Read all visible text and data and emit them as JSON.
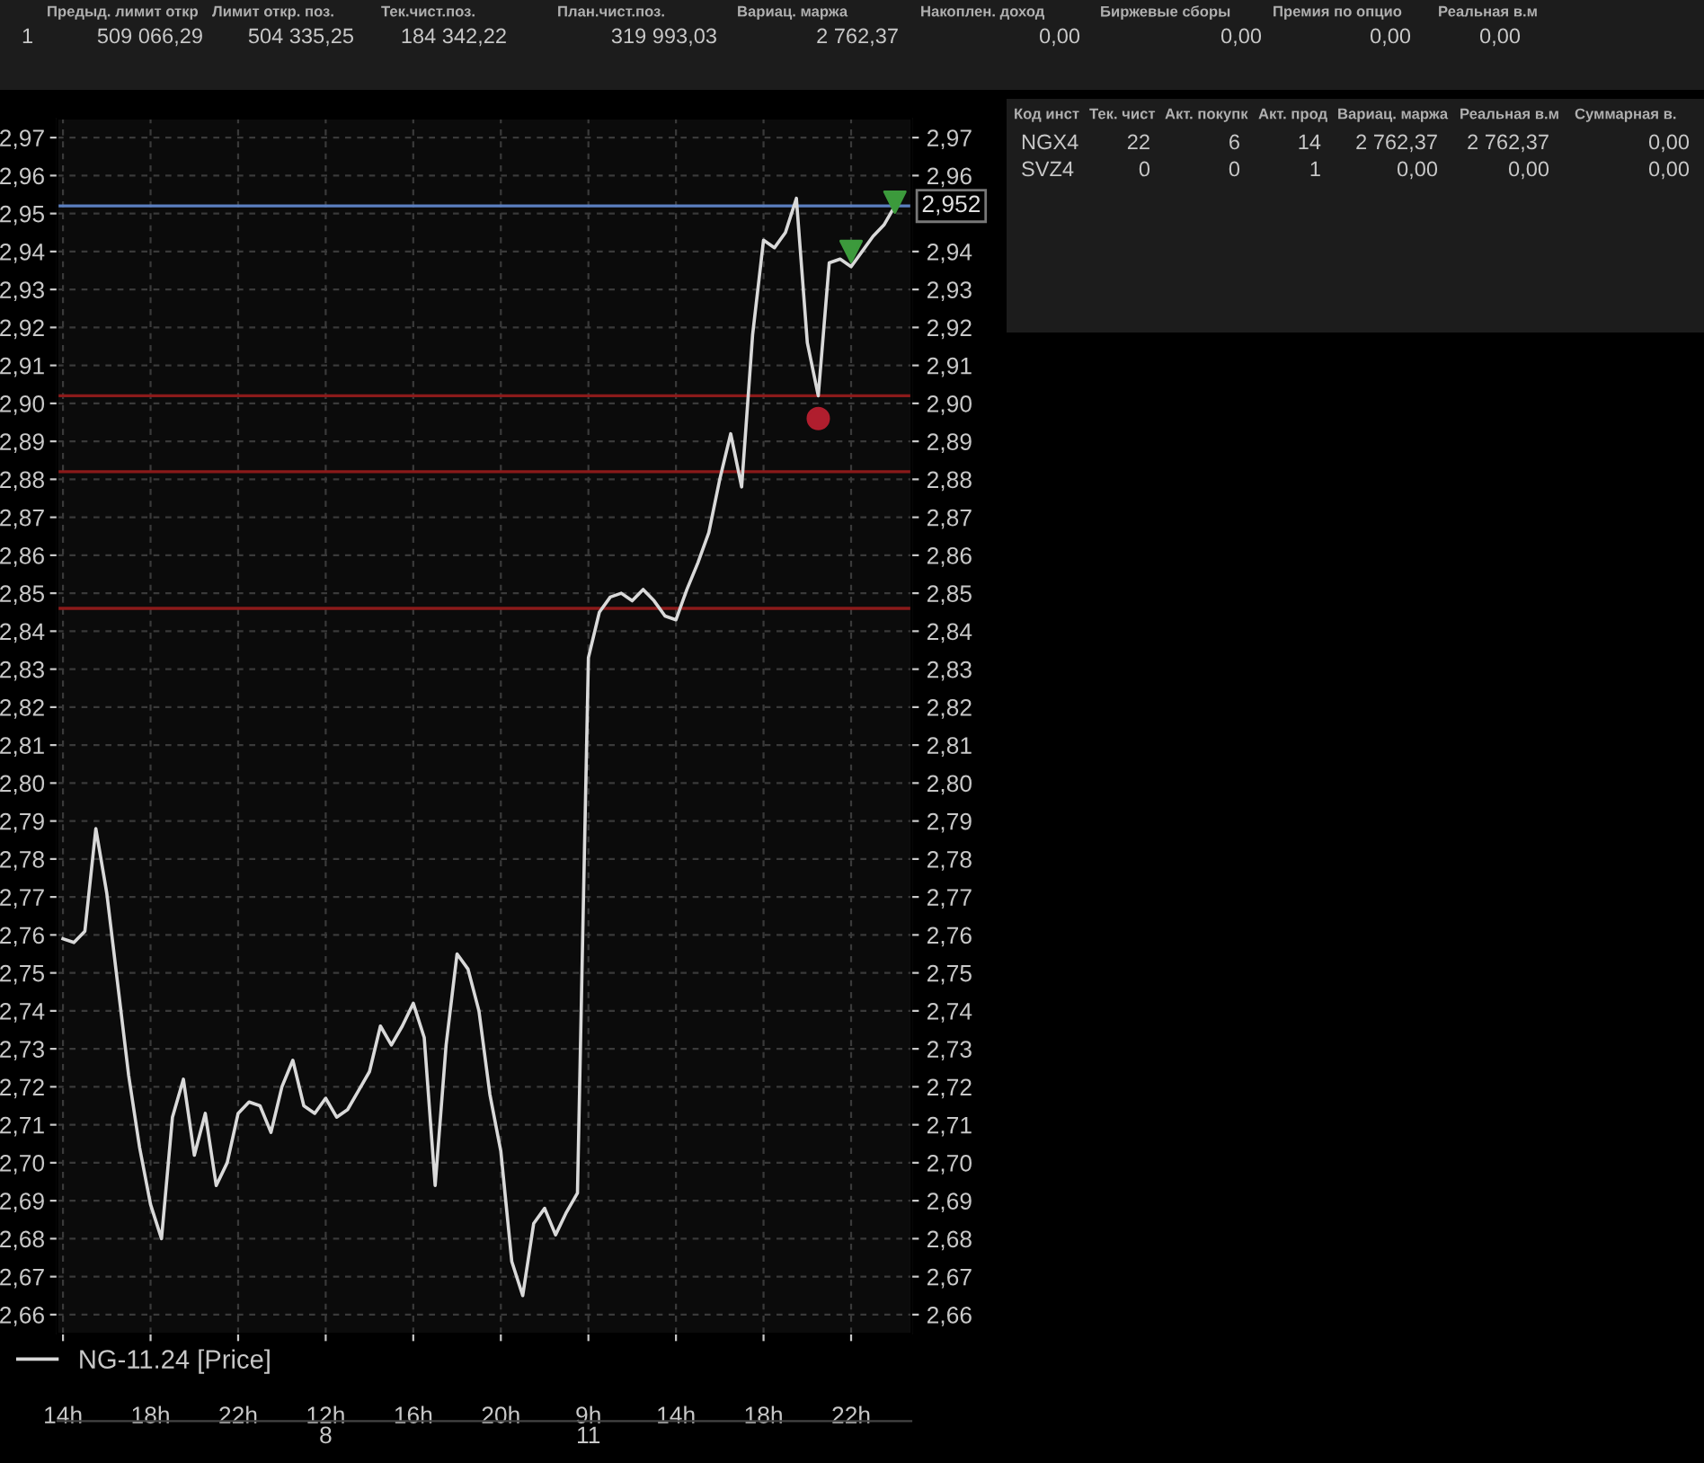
{
  "chart_data": [
    {
      "type": "line",
      "line_style": "solid",
      "marker": "none",
      "grid": true,
      "legend": "bottom",
      "categories": [
        "14h",
        null,
        null,
        null,
        null,
        null,
        null,
        null,
        "18h",
        null,
        null,
        null,
        null,
        null,
        null,
        null,
        "22h",
        null,
        null,
        null,
        null,
        null,
        null,
        null,
        "12h",
        null,
        null,
        null,
        null,
        null,
        null,
        null,
        "16h",
        null,
        null,
        null,
        null,
        null,
        null,
        null,
        "20h",
        null,
        null,
        null,
        null,
        null,
        null,
        null,
        "9h",
        null,
        null,
        null,
        null,
        null,
        null,
        null,
        "14h",
        null,
        null,
        null,
        null,
        null,
        null,
        null,
        "18h",
        null,
        null,
        null,
        null,
        null,
        null,
        null,
        "22h",
        null,
        null,
        null,
        null
      ],
      "annotations": [
        "8",
        "11"
      ],
      "ylim": [
        2.655,
        2.975
      ],
      "yticks": [
        {
          "value": 2.66,
          "label": "2,66"
        },
        {
          "value": 2.67,
          "label": "2,67"
        },
        {
          "value": 2.68,
          "label": "2,68"
        },
        {
          "value": 2.69,
          "label": "2,69"
        },
        {
          "value": 2.7,
          "label": "2,70"
        },
        {
          "value": 2.71,
          "label": "2,71"
        },
        {
          "value": 2.72,
          "label": "2,72"
        },
        {
          "value": 2.73,
          "label": "2,73"
        },
        {
          "value": 2.74,
          "label": "2,74"
        },
        {
          "value": 2.75,
          "label": "2,75"
        },
        {
          "value": 2.76,
          "label": "2,76"
        },
        {
          "value": 2.77,
          "label": "2,77"
        },
        {
          "value": 2.78,
          "label": "2,78"
        },
        {
          "value": 2.79,
          "label": "2,79"
        },
        {
          "value": 2.8,
          "label": "2,80"
        },
        {
          "value": 2.81,
          "label": "2,81"
        },
        {
          "value": 2.82,
          "label": "2,82"
        },
        {
          "value": 2.83,
          "label": "2,83"
        },
        {
          "value": 2.84,
          "label": "2,84"
        },
        {
          "value": 2.85,
          "label": "2,85"
        },
        {
          "value": 2.86,
          "label": "2,86"
        },
        {
          "value": 2.87,
          "label": "2,87"
        },
        {
          "value": 2.88,
          "label": "2,88"
        },
        {
          "value": 2.89,
          "label": "2,89"
        },
        {
          "value": 2.9,
          "label": "2,90"
        },
        {
          "value": 2.91,
          "label": "2,91"
        },
        {
          "value": 2.92,
          "label": "2,92"
        },
        {
          "value": 2.93,
          "label": "2,93"
        },
        {
          "value": 2.94,
          "label": "2,94"
        },
        {
          "value": 2.95,
          "label": "2,95"
        },
        {
          "value": 2.96,
          "label": "2,96"
        },
        {
          "value": 2.97,
          "label": "2,97"
        }
      ],
      "y2lim": [
        2.655,
        2.975
      ],
      "y2ticks": [
        {
          "value": 2.66,
          "label": "2,66"
        },
        {
          "value": 2.67,
          "label": "2,67"
        },
        {
          "value": 2.68,
          "label": "2,68"
        },
        {
          "value": 2.69,
          "label": "2,69"
        },
        {
          "value": 2.7,
          "label": "2,70"
        },
        {
          "value": 2.71,
          "label": "2,71"
        },
        {
          "value": 2.72,
          "label": "2,72"
        },
        {
          "value": 2.73,
          "label": "2,73"
        },
        {
          "value": 2.74,
          "label": "2,74"
        },
        {
          "value": 2.75,
          "label": "2,75"
        },
        {
          "value": 2.76,
          "label": "2,76"
        },
        {
          "value": 2.77,
          "label": "2,77"
        },
        {
          "value": 2.78,
          "label": "2,78"
        },
        {
          "value": 2.79,
          "label": "2,79"
        },
        {
          "value": 2.8,
          "label": "2,80"
        },
        {
          "value": 2.81,
          "label": "2,81"
        },
        {
          "value": 2.82,
          "label": "2,82"
        },
        {
          "value": 2.83,
          "label": "2,83"
        },
        {
          "value": 2.84,
          "label": "2,84"
        },
        {
          "value": 2.85,
          "label": "2,85"
        },
        {
          "value": 2.86,
          "label": "2,86"
        },
        {
          "value": 2.87,
          "label": "2,87"
        },
        {
          "value": 2.88,
          "label": "2,88"
        },
        {
          "value": 2.89,
          "label": "2,89"
        },
        {
          "value": 2.9,
          "label": "2,90"
        },
        {
          "value": 2.91,
          "label": "2,91"
        },
        {
          "value": 2.92,
          "label": "2,92"
        },
        {
          "value": 2.93,
          "label": "2,93"
        },
        {
          "value": 2.94,
          "label": "2,94"
        },
        {
          "value": 2.96,
          "label": "2,96"
        },
        {
          "value": 2.97,
          "label": "2,97"
        }
      ],
      "ref_lines": [
        {
          "axis": "y",
          "value": 2.952,
          "label": "2,952",
          "color": "#5b7fc0"
        },
        {
          "axis": "y",
          "value": 2.902,
          "label": null,
          "color": "#8b1a1a"
        },
        {
          "axis": "y",
          "value": 2.882,
          "label": null,
          "color": "#8b1a1a"
        },
        {
          "axis": "y",
          "value": 2.846,
          "label": null,
          "color": "#8b1a1a"
        }
      ],
      "series": [
        {
          "name": "NG-11.24 [Price]",
          "type": "line",
          "color": "#d9d9d9",
          "values": [
            2.759,
            2.758,
            2.761,
            2.788,
            2.771,
            2.747,
            2.723,
            2.704,
            2.689,
            2.68,
            2.712,
            2.722,
            2.702,
            2.713,
            2.694,
            2.7,
            2.713,
            2.716,
            2.715,
            2.708,
            2.72,
            2.727,
            2.715,
            2.713,
            2.717,
            2.712,
            2.714,
            2.719,
            2.724,
            2.736,
            2.731,
            2.736,
            2.742,
            2.733,
            2.694,
            2.731,
            2.755,
            2.751,
            2.74,
            2.718,
            2.703,
            2.674,
            2.665,
            2.684,
            2.688,
            2.681,
            2.687,
            2.692,
            2.833,
            2.845,
            2.849,
            2.85,
            2.848,
            2.851,
            2.848,
            2.844,
            2.843,
            2.851,
            2.858,
            2.866,
            2.88,
            2.892,
            2.878,
            2.918,
            2.943,
            2.941,
            2.945,
            2.954,
            2.916,
            2.902,
            2.937,
            2.938,
            2.936,
            2.94,
            2.944,
            2.947,
            2.952
          ]
        },
        {
          "type": "scatter",
          "marker": "triangle",
          "color": "#3c9a3c",
          "values": [
            null,
            null,
            null,
            null,
            null,
            null,
            null,
            null,
            null,
            null,
            null,
            null,
            null,
            null,
            null,
            null,
            null,
            null,
            null,
            null,
            null,
            null,
            null,
            null,
            null,
            null,
            null,
            null,
            null,
            null,
            null,
            null,
            null,
            null,
            null,
            null,
            null,
            null,
            null,
            null,
            null,
            null,
            null,
            null,
            null,
            null,
            null,
            null,
            null,
            null,
            null,
            null,
            null,
            null,
            null,
            null,
            null,
            null,
            null,
            null,
            null,
            null,
            null,
            null,
            null,
            null,
            null,
            null,
            null,
            null,
            null,
            null,
            2.94,
            null,
            null,
            null,
            2.953
          ]
        },
        {
          "type": "scatter",
          "marker": "circle",
          "color": "#b01e2e",
          "values": [
            null,
            null,
            null,
            null,
            null,
            null,
            null,
            null,
            null,
            null,
            null,
            null,
            null,
            null,
            null,
            null,
            null,
            null,
            null,
            null,
            null,
            null,
            null,
            null,
            null,
            null,
            null,
            null,
            null,
            null,
            null,
            null,
            null,
            null,
            null,
            null,
            null,
            null,
            null,
            null,
            null,
            null,
            null,
            null,
            null,
            null,
            null,
            null,
            null,
            null,
            null,
            null,
            null,
            null,
            null,
            null,
            null,
            null,
            null,
            null,
            null,
            null,
            null,
            null,
            null,
            null,
            null,
            null,
            null,
            2.896,
            null,
            null,
            null,
            null,
            null,
            null,
            null
          ]
        }
      ]
    },
    {
      "type": "other",
      "annotations": [
        "Предыд. лимит откр",
        "Лимит откр. поз.",
        "Тек.чист.поз.",
        "План.чист.поз.",
        "Вариац. маржа",
        "Накоплен. доход",
        "Биржевые сборы",
        "Премия по опцио",
        "Реальная в.м",
        "1",
        "509 066,29",
        "504 335,25",
        "184 342,22",
        "319 993,03",
        "2 762,37",
        "0,00",
        "0,00",
        "0,00",
        "0,00",
        "Код инст",
        "Тек. чист",
        "Акт. покупк",
        "Акт. прод",
        "Вариац. маржа",
        "Реальная в.м",
        "Суммарная в.",
        "NGX4",
        "22",
        "6",
        "14",
        "2 762,37",
        "2 762,37",
        "0,00",
        "SVZ4",
        "0",
        "0",
        "1",
        "0,00",
        "0,00",
        "0,00"
      ]
    }
  ]
}
